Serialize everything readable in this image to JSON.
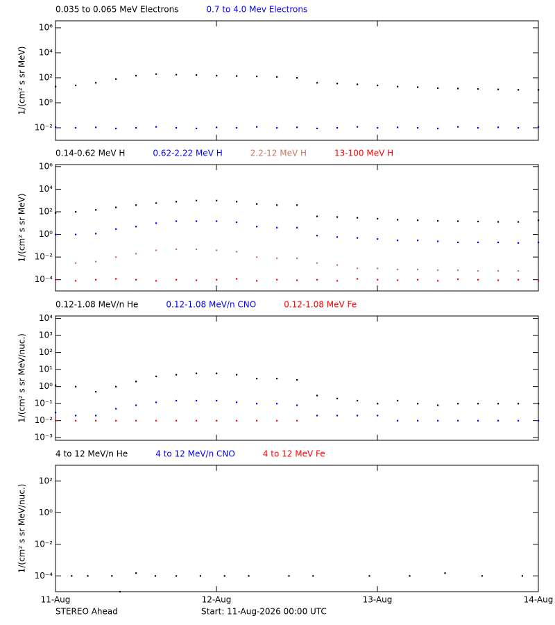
{
  "chart_data": [
    {
      "type": "scatter",
      "log_y": true,
      "ylabel": "1/(cm² s sr MeV)",
      "ylim": [
        0.001,
        3600000
      ],
      "yticks": [
        {
          "value": 0.01,
          "label": "10⁻²"
        },
        {
          "value": 1,
          "label": "10⁰"
        },
        {
          "value": 100,
          "label": "10²"
        },
        {
          "value": 10000,
          "label": "10⁴"
        },
        {
          "value": 1000000,
          "label": "10⁶"
        }
      ],
      "x": [
        0,
        0.125,
        0.25,
        0.375,
        0.5,
        0.625,
        0.75,
        0.875,
        1,
        1.125,
        1.25,
        1.375,
        1.5,
        1.625,
        1.75,
        1.875,
        2,
        2.125,
        2.25,
        2.375,
        2.5,
        2.625,
        2.75,
        2.875,
        3
      ],
      "series": [
        {
          "name": "0.035 to 0.065 MeV Electrons",
          "color": "#000000",
          "values": [
            20,
            25,
            40,
            80,
            150,
            200,
            180,
            170,
            150,
            140,
            130,
            120,
            100,
            40,
            35,
            30,
            25,
            20,
            18,
            15,
            14,
            13,
            12,
            11,
            11
          ]
        },
        {
          "name": "0.7 to 4.0 Mev Electrons",
          "color": "#0000ff",
          "values": [
            0.012,
            0.01,
            0.011,
            0.009,
            0.01,
            0.012,
            0.01,
            0.009,
            0.011,
            0.01,
            0.012,
            0.01,
            0.011,
            0.009,
            0.01,
            0.012,
            0.01,
            0.011,
            0.01,
            0.009,
            0.012,
            0.01,
            0.011,
            0.01,
            0.012
          ]
        }
      ]
    },
    {
      "type": "scatter",
      "log_y": true,
      "ylabel": "1/(cm² s sr MeV)",
      "ylim": [
        1e-05,
        1500000
      ],
      "yticks": [
        {
          "value": 0.0001,
          "label": "10⁻⁴"
        },
        {
          "value": 0.01,
          "label": "10⁻²"
        },
        {
          "value": 1,
          "label": "10⁰"
        },
        {
          "value": 100,
          "label": "10²"
        },
        {
          "value": 10000,
          "label": "10⁴"
        },
        {
          "value": 1000000,
          "label": "10⁶"
        }
      ],
      "x": [
        0,
        0.125,
        0.25,
        0.375,
        0.5,
        0.625,
        0.75,
        0.875,
        1,
        1.125,
        1.25,
        1.375,
        1.5,
        1.625,
        1.75,
        1.875,
        2,
        2.125,
        2.25,
        2.375,
        2.5,
        2.625,
        2.75,
        2.875,
        3
      ],
      "series": [
        {
          "name": "0.14-0.62 MeV H",
          "color": "#000000",
          "values": [
            80,
            100,
            150,
            250,
            400,
            600,
            800,
            1000,
            1000,
            800,
            500,
            400,
            400,
            40,
            35,
            30,
            25,
            20,
            18,
            16,
            15,
            14,
            13,
            13,
            18
          ]
        },
        {
          "name": "0.62-2.22 MeV H",
          "color": "#0000ff",
          "values": [
            1,
            1,
            1.2,
            3,
            5,
            10,
            15,
            15,
            15,
            12,
            5,
            4,
            4,
            0.8,
            0.6,
            0.5,
            0.4,
            0.3,
            0.3,
            0.25,
            0.2,
            0.2,
            0.2,
            0.18,
            0.2
          ]
        },
        {
          "name": "2.2-12 MeV H",
          "color": "#c87860",
          "values": [
            0.003,
            0.003,
            0.004,
            0.01,
            0.02,
            0.04,
            0.05,
            0.05,
            0.04,
            0.03,
            0.01,
            0.008,
            0.008,
            0.003,
            0.002,
            0.001,
            0.001,
            0.0008,
            0.0008,
            0.0007,
            0.0007,
            0.0006,
            0.0006,
            0.0006,
            0.0006
          ]
        },
        {
          "name": "13-100 MeV H",
          "color": "#ff0000",
          "values": [
            0.0001,
            8e-05,
            0.0001,
            0.00012,
            0.0001,
            8e-05,
            0.0001,
            9e-05,
            0.0001,
            0.00012,
            8e-05,
            0.0001,
            9e-05,
            0.0001,
            8e-05,
            0.00012,
            0.0001,
            9e-05,
            0.0001,
            8e-05,
            0.00011,
            0.0001,
            9e-05,
            0.0001,
            8e-05
          ]
        }
      ]
    },
    {
      "type": "scatter",
      "log_y": true,
      "ylabel": "1/(cm² s sr MeV/nuc.)",
      "ylim": [
        0.0007,
        14000
      ],
      "yticks": [
        {
          "value": 0.001,
          "label": "10⁻³"
        },
        {
          "value": 0.01,
          "label": "10⁻²"
        },
        {
          "value": 0.1,
          "label": "10⁻¹"
        },
        {
          "value": 1,
          "label": "10⁰"
        },
        {
          "value": 10,
          "label": "10¹"
        },
        {
          "value": 100,
          "label": "10²"
        },
        {
          "value": 1000,
          "label": "10³"
        },
        {
          "value": 10000,
          "label": "10⁴"
        }
      ],
      "x": [
        0,
        0.125,
        0.25,
        0.375,
        0.5,
        0.625,
        0.75,
        0.875,
        1,
        1.125,
        1.25,
        1.375,
        1.5,
        1.625,
        1.75,
        1.875,
        2,
        2.125,
        2.25,
        2.375,
        2.5,
        2.625,
        2.75,
        2.875,
        3
      ],
      "series": [
        {
          "name": "0.12-1.08 MeV/n He",
          "color": "#000000",
          "values": [
            1.2,
            1,
            0.5,
            1,
            2,
            4,
            5,
            6,
            6,
            5,
            3,
            3,
            2.5,
            0.3,
            0.2,
            0.15,
            0.1,
            0.15,
            0.1,
            0.08,
            0.1,
            0.1,
            0.1,
            0.1,
            0.1
          ]
        },
        {
          "name": "0.12-1.08 MeV/n CNO",
          "color": "#0000ff",
          "values": [
            0.03,
            0.02,
            0.02,
            0.05,
            0.08,
            0.12,
            0.15,
            0.15,
            0.15,
            0.12,
            0.1,
            0.1,
            0.08,
            0.02,
            0.02,
            0.02,
            0.02,
            0.01,
            0.01,
            0.01,
            0.01,
            0.01,
            0.01,
            0.01,
            0.01
          ]
        },
        {
          "name": "0.12-1.08 MeV Fe",
          "color": "#ff0000",
          "values": [
            0.01,
            0.01,
            0.01,
            0.01,
            0.01,
            0.01,
            0.01,
            0.01,
            0.01,
            0.01,
            0.01,
            0.01,
            0.01,
            null,
            null,
            null,
            null,
            null,
            null,
            null,
            null,
            null,
            null,
            null,
            null
          ]
        }
      ]
    },
    {
      "type": "scatter",
      "log_y": true,
      "ylabel": "1/(cm² s sr MeV/nuc.)",
      "ylim": [
        1e-05,
        1000
      ],
      "yticks": [
        {
          "value": 0.0001,
          "label": "10⁻⁴"
        },
        {
          "value": 0.01,
          "label": "10⁻²"
        },
        {
          "value": 1,
          "label": "10⁰"
        },
        {
          "value": 100,
          "label": "10²"
        }
      ],
      "xlim": [
        0,
        3
      ],
      "xticks": [
        {
          "value": 0,
          "label": "11-Aug"
        },
        {
          "value": 1,
          "label": "12-Aug"
        },
        {
          "value": 2,
          "label": "13-Aug"
        },
        {
          "value": 3,
          "label": "14-Aug"
        }
      ],
      "x": [
        0.1,
        0.2,
        0.35,
        0.4,
        0.5,
        0.62,
        0.75,
        0.9,
        1.05,
        1.2,
        1.45,
        1.6,
        1.95,
        2.2,
        2.42,
        2.65,
        2.9
      ],
      "series": [
        {
          "name": "4 to 12 MeV/n He",
          "color": "#000000",
          "values": [
            0.0001,
            0.0001,
            0.0001,
            1e-05,
            0.00015,
            0.0001,
            0.0001,
            0.0001,
            0.0001,
            0.0001,
            0.0001,
            0.0001,
            0.0001,
            0.0001,
            0.00015,
            0.0001,
            0.0001
          ]
        },
        {
          "name": "4 to 12 MeV/n CNO",
          "color": "#0000ff",
          "values": [
            null,
            null,
            null,
            null,
            null,
            null,
            null,
            null,
            null,
            null,
            null,
            null,
            null,
            null,
            null,
            null,
            null
          ]
        },
        {
          "name": "4 to 12 MeV Fe",
          "color": "#ff0000",
          "values": [
            null,
            null,
            null,
            null,
            null,
            null,
            null,
            null,
            null,
            null,
            null,
            null,
            null,
            null,
            null,
            null,
            null
          ]
        }
      ],
      "caption_left": "STEREO Ahead",
      "caption_right": "Start: 11-Aug-2026 00:00 UTC"
    }
  ]
}
